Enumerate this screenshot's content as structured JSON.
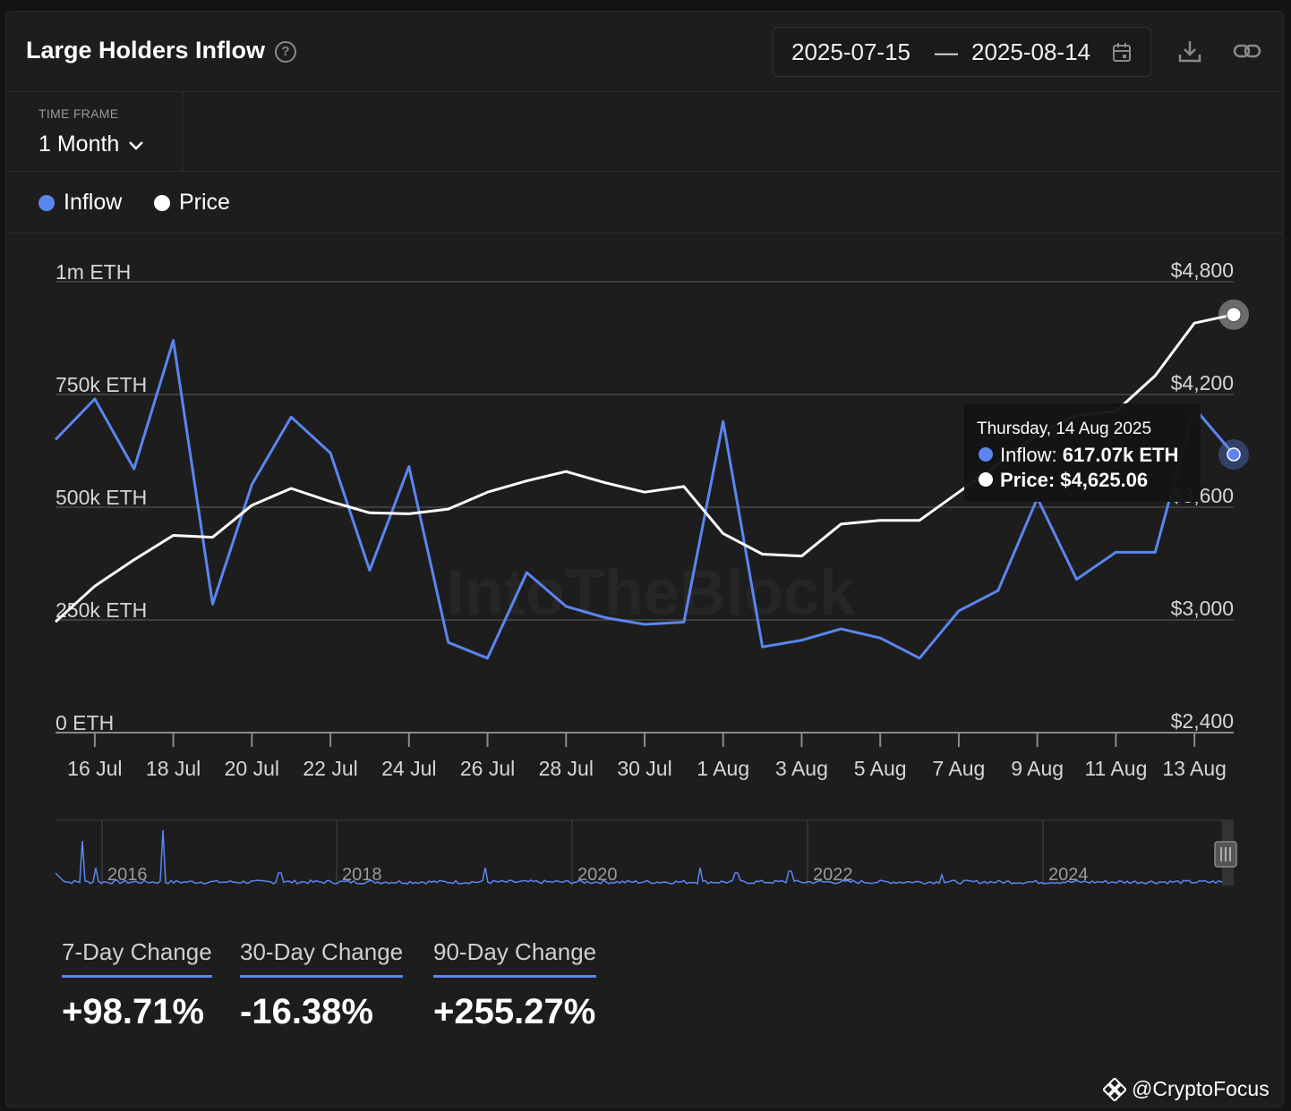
{
  "header": {
    "title": "Large Holders Inflow",
    "help_glyph": "?",
    "date_start": "2025-07-15",
    "date_dash": "—",
    "date_end": "2025-08-14"
  },
  "timeframe": {
    "label": "TIME FRAME",
    "value": "1 Month"
  },
  "legend": [
    {
      "name": "Inflow",
      "color": "#5b86f0"
    },
    {
      "name": "Price",
      "color": "#ffffff"
    }
  ],
  "tooltip": {
    "date": "Thursday, 14 Aug 2025",
    "inflow_label": "Inflow: ",
    "inflow_value": "617.07k ETH",
    "price_label": "Price: ",
    "price_value": "$4,625.06"
  },
  "watermark": "IntoTheBlock",
  "chart_data": {
    "type": "line",
    "x": [
      "2025-07-15",
      "2025-07-16",
      "2025-07-17",
      "2025-07-18",
      "2025-07-19",
      "2025-07-20",
      "2025-07-21",
      "2025-07-22",
      "2025-07-23",
      "2025-07-24",
      "2025-07-25",
      "2025-07-26",
      "2025-07-27",
      "2025-07-28",
      "2025-07-29",
      "2025-07-30",
      "2025-07-31",
      "2025-08-01",
      "2025-08-02",
      "2025-08-03",
      "2025-08-04",
      "2025-08-05",
      "2025-08-06",
      "2025-08-07",
      "2025-08-08",
      "2025-08-09",
      "2025-08-10",
      "2025-08-11",
      "2025-08-12",
      "2025-08-13",
      "2025-08-14"
    ],
    "x_ticks": [
      "16 Jul",
      "18 Jul",
      "20 Jul",
      "22 Jul",
      "24 Jul",
      "26 Jul",
      "28 Jul",
      "30 Jul",
      "1 Aug",
      "3 Aug",
      "5 Aug",
      "7 Aug",
      "9 Aug",
      "11 Aug",
      "13 Aug"
    ],
    "y_left": {
      "range": [
        0,
        1000000
      ],
      "ticks": [
        "0 ETH",
        "250k ETH",
        "500k ETH",
        "750k ETH",
        "1m ETH"
      ]
    },
    "y_right": {
      "range": [
        2400,
        4800
      ],
      "ticks": [
        "$2,400",
        "$3,000",
        "$3,600",
        "$4,200",
        "$4,800"
      ]
    },
    "series": [
      {
        "name": "Inflow",
        "axis": "left",
        "color": "#5b86f0",
        "values": [
          650000,
          740000,
          585000,
          870000,
          285000,
          550000,
          700000,
          620000,
          360000,
          590000,
          200000,
          165000,
          355000,
          280000,
          255000,
          240000,
          245000,
          690000,
          190000,
          205000,
          230000,
          210000,
          165000,
          270000,
          315000,
          520000,
          340000,
          400000,
          400000,
          720000,
          617070
        ]
      },
      {
        "name": "Price",
        "axis": "right",
        "color": "#ffffff",
        "values": [
          2990,
          3180,
          3320,
          3450,
          3440,
          3610,
          3700,
          3630,
          3570,
          3565,
          3590,
          3680,
          3740,
          3790,
          3730,
          3680,
          3710,
          3460,
          3350,
          3340,
          3510,
          3530,
          3530,
          3680,
          3830,
          3990,
          4090,
          4110,
          4300,
          4580,
          4625.06
        ]
      }
    ],
    "grid": true,
    "legend_position": "top-left"
  },
  "navigator": {
    "years": [
      "2016",
      "2018",
      "2020",
      "2022",
      "2024"
    ]
  },
  "stats": [
    {
      "label": "7-Day Change",
      "value": "+98.71%"
    },
    {
      "label": "30-Day Change",
      "value": "-16.38%"
    },
    {
      "label": "90-Day Change",
      "value": "+255.27%"
    }
  ],
  "credit": "@CryptoFocus"
}
